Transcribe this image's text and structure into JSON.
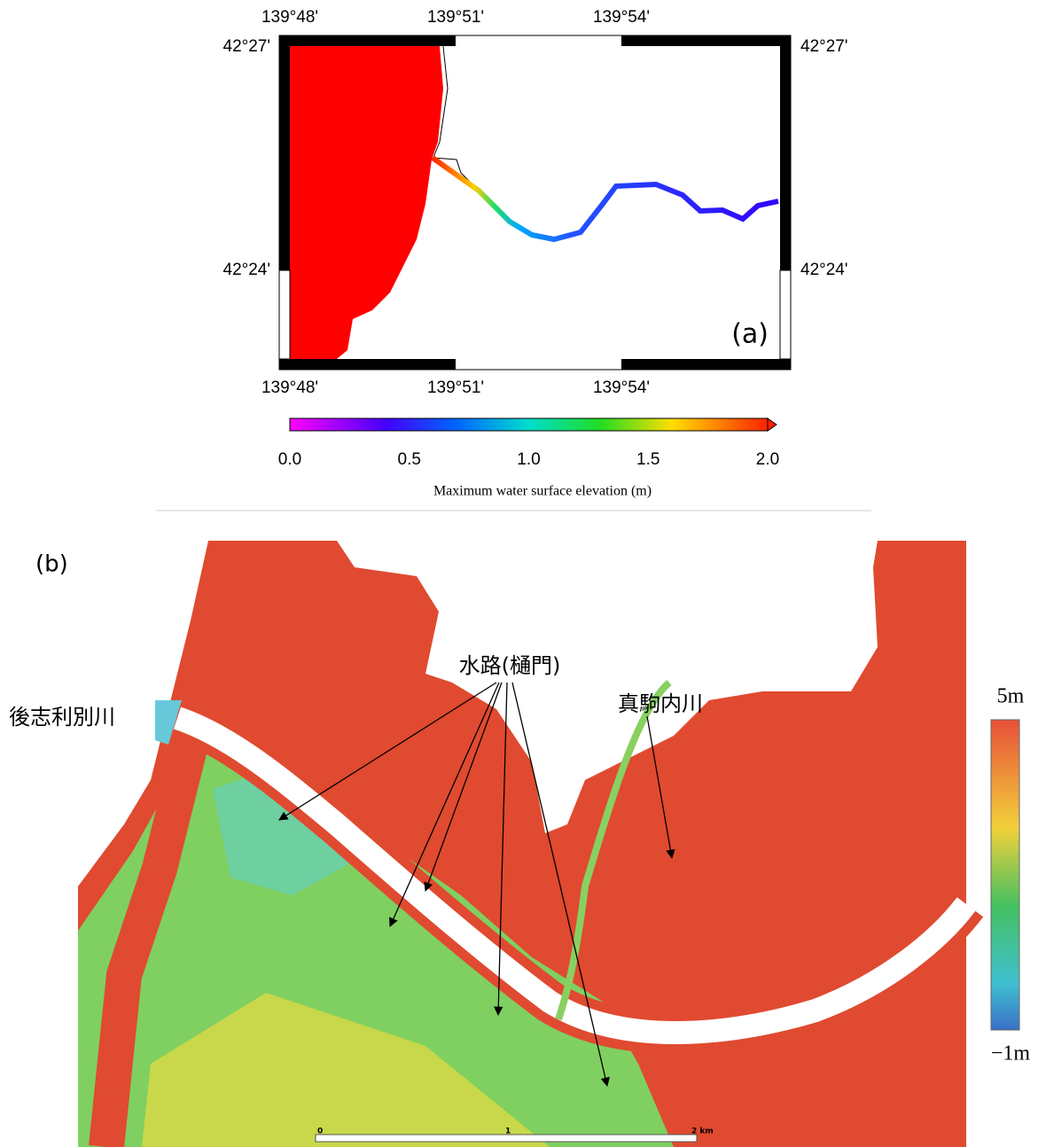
{
  "panel_a": {
    "top_labels": [
      "139°48'",
      "139°51'",
      "139°54'"
    ],
    "bottom_labels": [
      "139°48'",
      "139°51'",
      "139°54'"
    ],
    "left_labels": [
      "42°27'",
      "42°24'"
    ],
    "right_labels": [
      "42°27'",
      "42°24'"
    ],
    "panel_label": "(a)",
    "colorbar_ticks": [
      "0.0",
      "0.5",
      "1.0",
      "1.5",
      "2.0"
    ],
    "colorbar_label": "Maximum  water surface elevation  (m)"
  },
  "panel_b": {
    "panel_label": "(b)",
    "river_label": "後志利別川",
    "channel_label": "水路(樋門)",
    "tributary_label": "真駒内川",
    "colorbar_max": "5m",
    "colorbar_min": "−1m",
    "scale_labels": [
      "0",
      "1",
      "2 km"
    ]
  }
}
